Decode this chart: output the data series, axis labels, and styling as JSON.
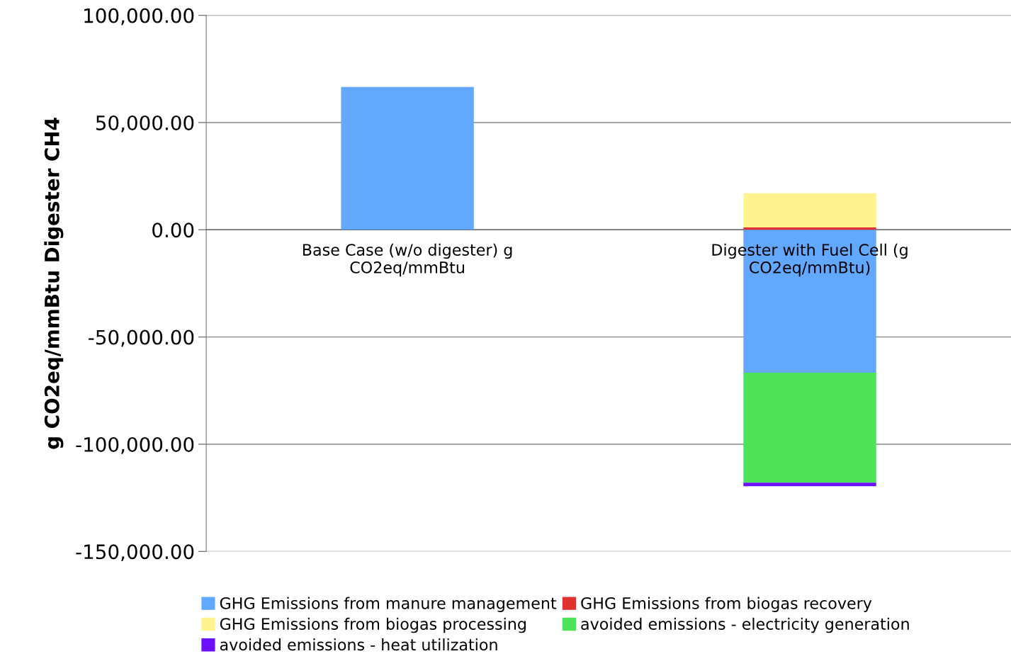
{
  "chart_data": {
    "type": "bar",
    "stacked": true,
    "ylabel": "g CO2eq/mmBtu Digester CH4",
    "categories": [
      "Base Case (w/o digester) g\nCO2eq/mmBtu",
      "Digester with Fuel Cell (g\nCO2eq/mmBtu)"
    ],
    "series": [
      {
        "name": "GHG Emissions from manure management",
        "color": "#63a8ff",
        "values": [
          66600,
          -66600
        ]
      },
      {
        "name": "GHG Emissions from biogas recovery",
        "color": "#e03030",
        "values": [
          0,
          1100
        ]
      },
      {
        "name": "GHG Emissions from biogas processing",
        "color": "#fff38f",
        "values": [
          0,
          15900
        ]
      },
      {
        "name": "avoided emissions - electricity generation",
        "color": "#4fe35a",
        "values": [
          0,
          -51300
        ]
      },
      {
        "name": "avoided emissions - heat utilization",
        "color": "#6a10ff",
        "values": [
          0,
          -1700
        ]
      }
    ],
    "ylim": [
      -150000,
      100000
    ],
    "yticks": [
      {
        "value": -150000,
        "label": "-150,000.00"
      },
      {
        "value": -100000,
        "label": "-100,000.00"
      },
      {
        "value": -50000,
        "label": "-50,000.00"
      },
      {
        "value": 0,
        "label": "0.00"
      },
      {
        "value": 50000,
        "label": "50,000.00"
      },
      {
        "value": 100000,
        "label": "100,000.00"
      }
    ],
    "grid": "y",
    "legend": "bottom"
  }
}
